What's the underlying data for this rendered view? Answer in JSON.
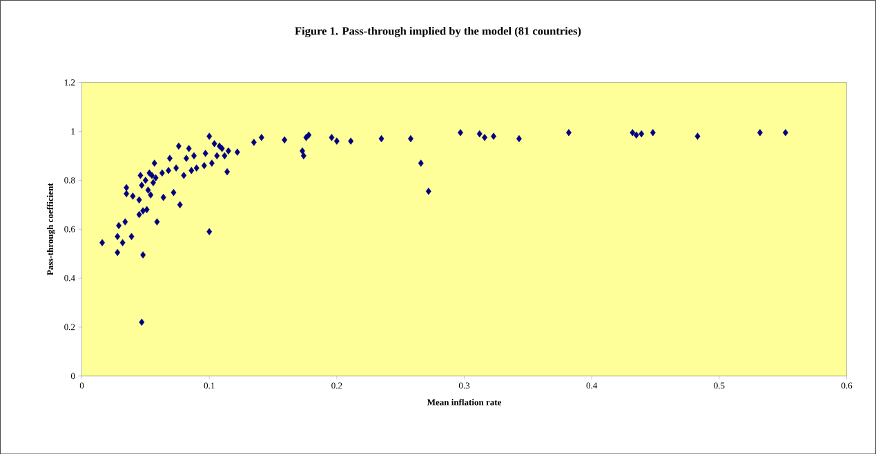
{
  "chart_data": {
    "type": "scatter",
    "title": "Figure 1. Pass-through implied by the model (81 countries)",
    "xlabel": "Mean inflation rate",
    "ylabel": "Pass-through coefficient",
    "x": [
      0.016,
      0.028,
      0.028,
      0.029,
      0.032,
      0.034,
      0.035,
      0.035,
      0.039,
      0.04,
      0.045,
      0.045,
      0.046,
      0.047,
      0.047,
      0.048,
      0.048,
      0.05,
      0.051,
      0.052,
      0.053,
      0.054,
      0.055,
      0.056,
      0.057,
      0.058,
      0.059,
      0.063,
      0.064,
      0.068,
      0.069,
      0.072,
      0.074,
      0.076,
      0.077,
      0.08,
      0.082,
      0.084,
      0.086,
      0.088,
      0.09,
      0.096,
      0.097,
      0.1,
      0.1,
      0.102,
      0.104,
      0.106,
      0.108,
      0.11,
      0.112,
      0.114,
      0.115,
      0.122,
      0.135,
      0.141,
      0.159,
      0.173,
      0.174,
      0.176,
      0.178,
      0.196,
      0.2,
      0.211,
      0.235,
      0.258,
      0.266,
      0.272,
      0.297,
      0.312,
      0.316,
      0.323,
      0.343,
      0.382,
      0.432,
      0.435,
      0.439,
      0.448,
      0.483,
      0.532,
      0.552
    ],
    "values": [
      0.545,
      0.505,
      0.57,
      0.615,
      0.545,
      0.63,
      0.77,
      0.745,
      0.57,
      0.735,
      0.72,
      0.66,
      0.82,
      0.78,
      0.22,
      0.495,
      0.675,
      0.8,
      0.68,
      0.76,
      0.83,
      0.74,
      0.82,
      0.79,
      0.87,
      0.81,
      0.63,
      0.83,
      0.73,
      0.84,
      0.89,
      0.75,
      0.85,
      0.94,
      0.7,
      0.82,
      0.89,
      0.93,
      0.84,
      0.9,
      0.85,
      0.86,
      0.91,
      0.59,
      0.98,
      0.87,
      0.95,
      0.9,
      0.94,
      0.93,
      0.9,
      0.835,
      0.92,
      0.915,
      0.955,
      0.975,
      0.965,
      0.92,
      0.9,
      0.975,
      0.985,
      0.975,
      0.96,
      0.96,
      0.97,
      0.97,
      0.87,
      0.755,
      0.995,
      0.99,
      0.975,
      0.98,
      0.97,
      0.995,
      0.995,
      0.985,
      0.99,
      0.995,
      0.98,
      0.995,
      0.995
    ],
    "color": "#000080",
    "marker": "diamond",
    "grid": false,
    "xlim": [
      0,
      0.6
    ],
    "ylim": [
      0,
      1.2
    ],
    "xticks": [
      0,
      0.1,
      0.2,
      0.3,
      0.4,
      0.5,
      0.6
    ],
    "yticks": [
      0,
      0.2,
      0.4,
      0.6,
      0.8,
      1,
      1.2
    ]
  }
}
